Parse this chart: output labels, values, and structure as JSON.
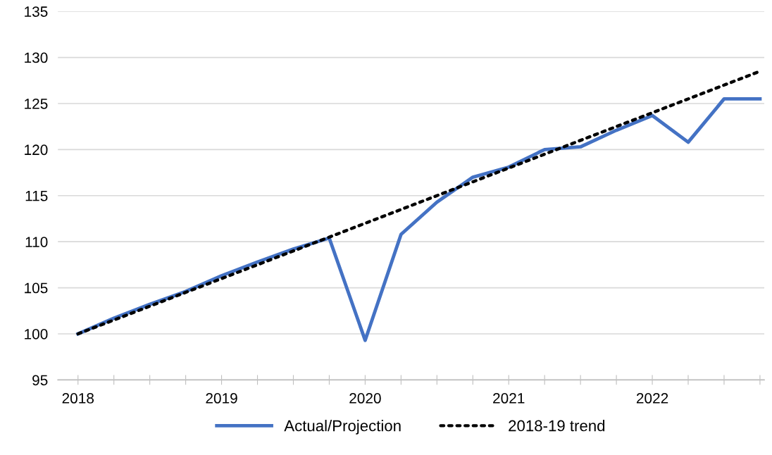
{
  "chart_data": {
    "type": "line",
    "series": [
      {
        "name": "Actual/Projection",
        "color": "#4472c4",
        "line_style": "solid",
        "x": [
          2018,
          2018.25,
          2018.5,
          2018.75,
          2019,
          2019.25,
          2019.5,
          2019.75,
          2020,
          2020.25,
          2020.5,
          2020.75,
          2021,
          2021.25,
          2021.5,
          2021.75,
          2022,
          2022.25,
          2022.5,
          2022.75
        ],
        "values": [
          100,
          101.7,
          103.2,
          104.6,
          106.3,
          107.8,
          109.2,
          110.4,
          99.3,
          110.8,
          114.3,
          117.0,
          118.1,
          120.0,
          120.3,
          122.1,
          123.7,
          120.8,
          125.5,
          125.5
        ]
      },
      {
        "name": "2018-19 trend",
        "color": "#000000",
        "line_style": "dotted",
        "x": [
          2018,
          2022.75
        ],
        "values": [
          100,
          128.5
        ]
      }
    ],
    "xlim": [
      2017.86,
      2022.78
    ],
    "xticks": [
      2018,
      {
        "value": 2018.25,
        "label": null
      },
      {
        "value": 2018.5,
        "label": null
      },
      {
        "value": 2018.75,
        "label": null
      },
      2019,
      {
        "value": 2019.25,
        "label": null
      },
      {
        "value": 2019.5,
        "label": null
      },
      {
        "value": 2019.75,
        "label": null
      },
      2020,
      {
        "value": 2020.25,
        "label": null
      },
      {
        "value": 2020.5,
        "label": null
      },
      {
        "value": 2020.75,
        "label": null
      },
      2021,
      {
        "value": 2021.25,
        "label": null
      },
      {
        "value": 2021.5,
        "label": null
      },
      {
        "value": 2021.75,
        "label": null
      },
      2022,
      {
        "value": 2022.25,
        "label": null
      },
      {
        "value": 2022.5,
        "label": null
      },
      {
        "value": 2022.75,
        "label": null
      }
    ],
    "ylim": [
      95,
      135
    ],
    "yticks": [
      95,
      100,
      105,
      110,
      115,
      120,
      125,
      130,
      135
    ],
    "grid": "y",
    "legend": "bottom",
    "marker": "none"
  }
}
